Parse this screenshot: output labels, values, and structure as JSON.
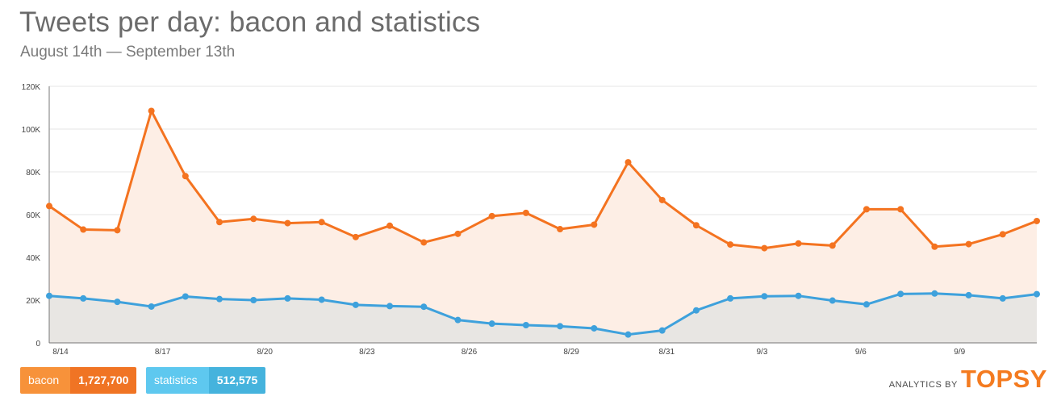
{
  "header": {
    "title": "Tweets per day: bacon and statistics",
    "subtitle": "August 14th — September 13th"
  },
  "legend": [
    {
      "name": "bacon",
      "value": "1,727,700",
      "color": "#f07424"
    },
    {
      "name": "statistics",
      "value": "512,575",
      "color": "#45b3dd"
    }
  ],
  "branding": {
    "by": "ANALYTICS BY",
    "logo": "TOPSY"
  },
  "chart_data": {
    "type": "line",
    "title": "Tweets per day: bacon and statistics",
    "subtitle": "August 14th — September 13th",
    "x": [
      "8/14",
      "8/15",
      "8/16",
      "8/17",
      "8/18",
      "8/19",
      "8/20",
      "8/21",
      "8/22",
      "8/23",
      "8/24",
      "8/25",
      "8/26",
      "8/27",
      "8/28",
      "8/29",
      "8/30",
      "8/31",
      "9/1",
      "9/2",
      "9/3",
      "9/4",
      "9/5",
      "9/6",
      "9/7",
      "9/8",
      "9/9",
      "9/10",
      "9/11",
      "9/12"
    ],
    "xtick_labels": [
      "8/14",
      "8/17",
      "8/20",
      "8/23",
      "8/26",
      "8/29",
      "8/31",
      "9/3",
      "9/6",
      "9/9"
    ],
    "xtick_indices": [
      0,
      3,
      6,
      9,
      12,
      15,
      17.8,
      20.6,
      23.5,
      26.4
    ],
    "yticks": [
      0,
      20000,
      40000,
      60000,
      80000,
      100000,
      120000
    ],
    "ytick_labels": [
      "0",
      "20K",
      "40K",
      "60K",
      "80K",
      "100K",
      "120K"
    ],
    "ylim": [
      0,
      120000
    ],
    "grid": true,
    "area_fill": true,
    "series": [
      {
        "name": "bacon",
        "color": "#f47320",
        "fill": "#fdeee5",
        "values": [
          64000,
          53000,
          52700,
          108500,
          78000,
          56500,
          58000,
          56000,
          56500,
          49500,
          54800,
          47000,
          51000,
          59300,
          60800,
          53200,
          55300,
          84500,
          66800,
          55000,
          46000,
          44300,
          46500,
          45500,
          62500,
          62500,
          45000,
          46200,
          50800,
          57000
        ]
      },
      {
        "name": "statistics",
        "color": "#3ea1dc",
        "fill": "#e8e6e3",
        "values": [
          22000,
          20800,
          19200,
          17000,
          21700,
          20500,
          20000,
          20800,
          20200,
          17800,
          17200,
          16900,
          10700,
          9000,
          8300,
          7800,
          6800,
          3900,
          5800,
          15200,
          20800,
          21800,
          22000,
          19800,
          18000,
          22900,
          23100,
          22300,
          20800,
          22800
        ]
      }
    ]
  }
}
